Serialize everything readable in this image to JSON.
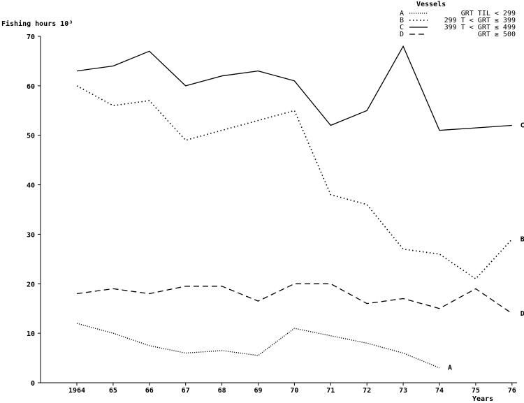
{
  "chart_data": {
    "type": "line",
    "ylabel": "Fishing hours 10³",
    "xlabel": "Years",
    "ylim": [
      0,
      70
    ],
    "yticks": [
      "0",
      "10",
      "20",
      "30",
      "40",
      "50",
      "60",
      "70"
    ],
    "categories": [
      "1964",
      "65",
      "66",
      "67",
      "68",
      "69",
      "70",
      "71",
      "72",
      "73",
      "74",
      "75",
      "76"
    ],
    "legend_title": "Vessels",
    "series": [
      {
        "name": "A",
        "legend_label": "GRT TIL < 299",
        "end_label": "A",
        "style": "dot-fine",
        "values": [
          12,
          10,
          7.5,
          6,
          6.5,
          5.5,
          11,
          9.5,
          8,
          6,
          3,
          null,
          null
        ]
      },
      {
        "name": "B",
        "legend_label": "299 T < GRT ≤ 399",
        "end_label": "B",
        "style": "dotted",
        "values": [
          60,
          56,
          57,
          49,
          51,
          53,
          55,
          38,
          36,
          27,
          26,
          21,
          29
        ]
      },
      {
        "name": "C",
        "legend_label": "399 T < GRT ≤ 499",
        "end_label": "C",
        "style": "solid",
        "values": [
          63,
          64,
          67,
          60,
          62,
          63,
          61,
          52,
          55,
          68,
          51,
          51.5,
          52
        ]
      },
      {
        "name": "D",
        "legend_label": "GRT ≥ 500",
        "end_label": "D",
        "style": "dashed",
        "values": [
          18,
          19,
          18,
          19.5,
          19.5,
          16.5,
          20,
          20,
          16,
          17,
          15,
          19,
          14
        ]
      }
    ]
  }
}
